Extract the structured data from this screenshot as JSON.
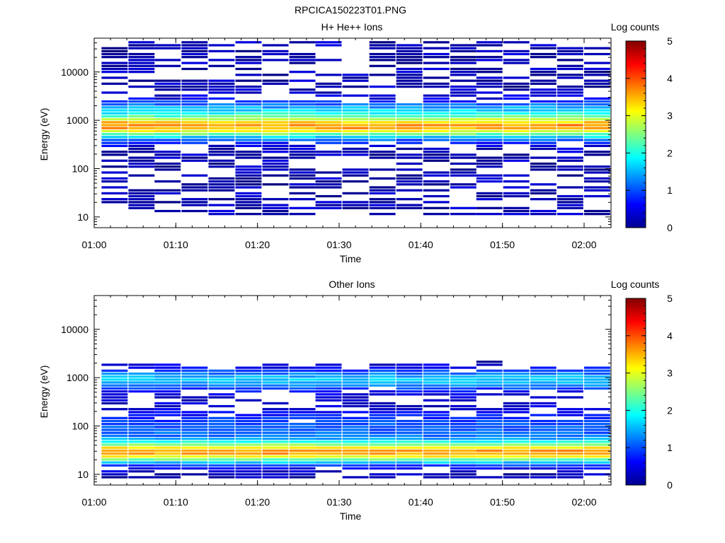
{
  "figure_title": "RPCICA150223T01.PNG",
  "chart_data": [
    {
      "type": "heatmap",
      "title": "H+ He++ Ions",
      "xlabel": "Time",
      "ylabel": "Energy (eV)",
      "x_ticks": [
        "01:00",
        "01:10",
        "01:20",
        "01:30",
        "01:40",
        "01:50",
        "02:00"
      ],
      "x_range_minutes": [
        0,
        63
      ],
      "y_scale": "log",
      "y_ticks": [
        "10",
        "100",
        "1000",
        "10000"
      ],
      "y_range": [
        6,
        50000
      ],
      "colorbar_label": "Log counts",
      "colorbar_ticks": [
        "0",
        "1",
        "2",
        "3",
        "4",
        "5"
      ],
      "colorbar_range": [
        0,
        5
      ],
      "time_bins_minutes": [
        2.5,
        5.8,
        9.0,
        12.3,
        15.6,
        18.9,
        22.2,
        25.5,
        28.7,
        32.0,
        35.3,
        38.6,
        41.9,
        45.2,
        48.4,
        51.7,
        55.0,
        58.3,
        61.6
      ],
      "energy_range_ev": [
        11,
        45000
      ],
      "peak_energy_ev": 750,
      "peak_log_counts": 3.4
    },
    {
      "type": "heatmap",
      "title": "Other Ions",
      "xlabel": "Time",
      "ylabel": "Energy (eV)",
      "x_ticks": [
        "01:00",
        "01:10",
        "01:20",
        "01:30",
        "01:40",
        "01:50",
        "02:00"
      ],
      "x_range_minutes": [
        0,
        63
      ],
      "y_scale": "log",
      "y_ticks": [
        "10",
        "100",
        "1000",
        "10000"
      ],
      "y_range": [
        6,
        50000
      ],
      "colorbar_label": "Log counts",
      "colorbar_ticks": [
        "0",
        "1",
        "2",
        "3",
        "4",
        "5"
      ],
      "colorbar_range": [
        0,
        5
      ],
      "time_bins_minutes": [
        2.5,
        5.8,
        9.0,
        12.3,
        15.6,
        18.9,
        22.2,
        25.5,
        28.7,
        32.0,
        35.3,
        38.6,
        41.9,
        45.2,
        48.4,
        51.7,
        55.0,
        58.3,
        61.6
      ],
      "energy_range_ev": [
        8,
        2500
      ],
      "peak_energy_ev": 28,
      "peak_log_counts": 3.3
    }
  ]
}
